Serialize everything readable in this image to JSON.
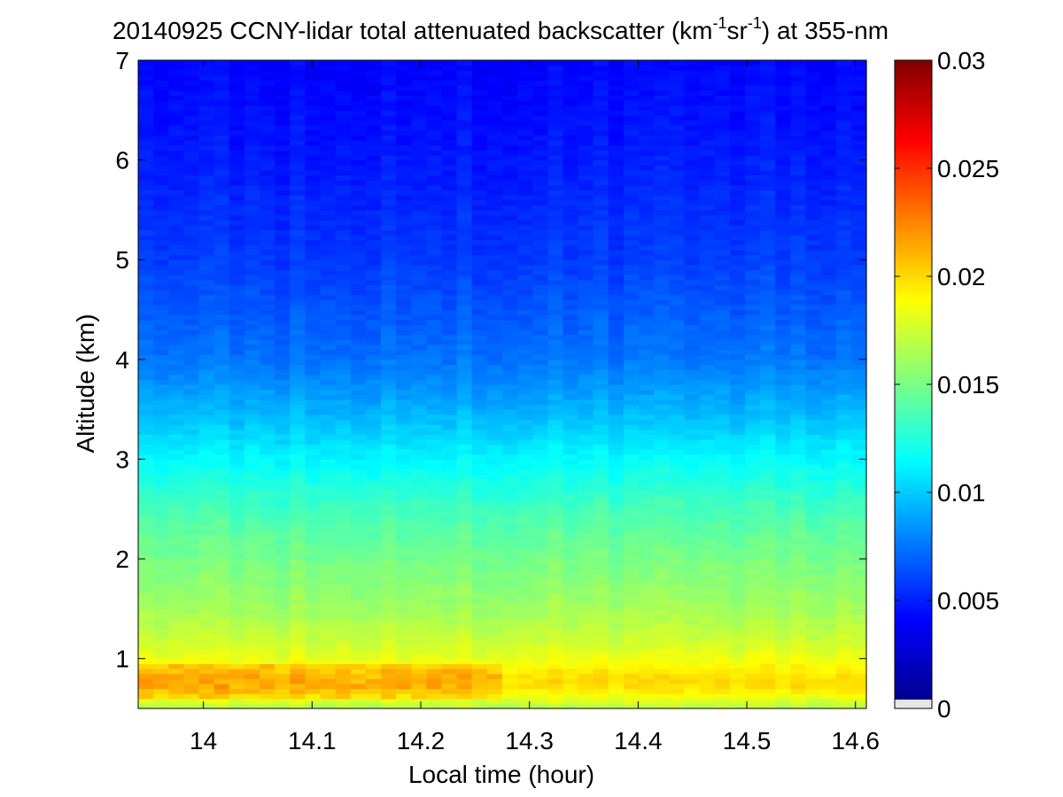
{
  "chart_data": {
    "type": "heatmap",
    "title": {
      "prefix": "20140925 CCNY-lidar total attenuated backscatter (km",
      "sup1": "-1",
      "middle": "sr",
      "sup2": "-1",
      "suffix": ") at 355-nm"
    },
    "xlabel": "Local time (hour)",
    "ylabel": "Altitude (km)",
    "xlim": [
      13.94,
      14.61
    ],
    "ylim": [
      0.5,
      7
    ],
    "xticks": [
      14,
      14.1,
      14.2,
      14.3,
      14.4,
      14.5,
      14.6
    ],
    "xtick_labels": [
      "14",
      "14.1",
      "14.2",
      "14.3",
      "14.4",
      "14.5",
      "14.6"
    ],
    "yticks": [
      1,
      2,
      3,
      4,
      5,
      6,
      7
    ],
    "ytick_labels": [
      "1",
      "2",
      "3",
      "4",
      "5",
      "6",
      "7"
    ],
    "colorbar": {
      "range": [
        0,
        0.03
      ],
      "ticks": [
        0,
        0.005,
        0.01,
        0.015,
        0.02,
        0.025,
        0.03
      ],
      "tick_labels": [
        "0",
        "0.005",
        "0.01",
        "0.015",
        "0.02",
        "0.025",
        "0.03"
      ],
      "colormap": "jet"
    },
    "altitude_profile_km": [
      0.5,
      0.6,
      0.7,
      0.8,
      0.9,
      1.0,
      1.2,
      1.5,
      2.0,
      2.5,
      3.0,
      3.5,
      4.0,
      5.0,
      6.0,
      7.0
    ],
    "backscatter_profile": [
      0.0165,
      0.018,
      0.0195,
      0.0198,
      0.019,
      0.0182,
      0.0172,
      0.016,
      0.0148,
      0.0133,
      0.0112,
      0.009,
      0.0072,
      0.0055,
      0.0045,
      0.0038
    ],
    "enhanced_layer": {
      "altitude_km": [
        0.6,
        0.95
      ],
      "time_hour": [
        13.94,
        14.28
      ],
      "peak_value": 0.0205
    },
    "colors": {
      "background": "#ffffff",
      "axes": "#000000"
    }
  }
}
